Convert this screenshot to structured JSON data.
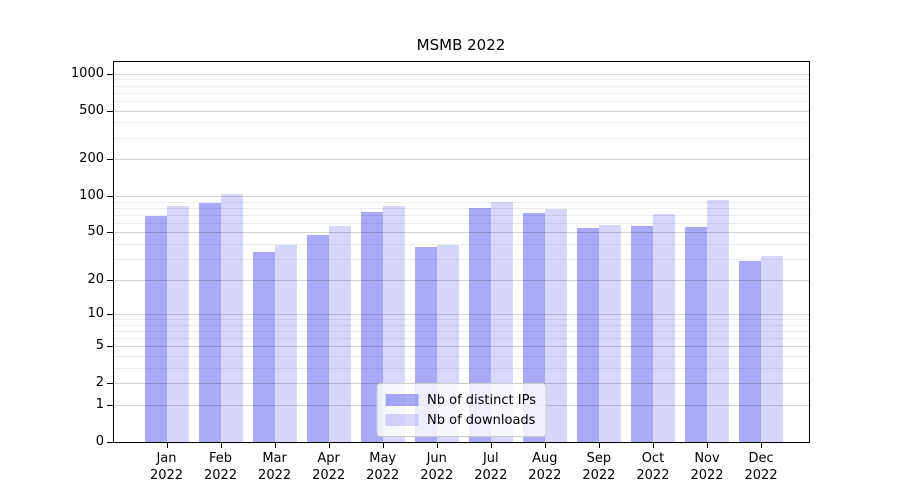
{
  "chart_data": {
    "type": "bar",
    "title": "MSMB 2022",
    "categories": [
      "Jan",
      "Feb",
      "Mar",
      "Apr",
      "May",
      "Jun",
      "Jul",
      "Aug",
      "Sep",
      "Oct",
      "Nov",
      "Dec"
    ],
    "year": "2022",
    "series": [
      {
        "name": "Nb of distinct IPs",
        "color": "rgba(68,68,238,0.46)",
        "values": [
          68,
          88,
          34,
          48,
          74,
          38,
          79,
          73,
          54,
          57,
          55,
          29
        ]
      },
      {
        "name": "Nb of downloads",
        "color": "rgba(68,68,238,0.21)",
        "values": [
          82,
          103,
          39,
          57,
          83,
          39,
          90,
          78,
          58,
          71,
          92,
          32
        ]
      }
    ],
    "yscale": "log1p",
    "ylim": [
      0,
      1245
    ],
    "y_ticks": [
      0,
      1,
      2,
      5,
      10,
      20,
      50,
      100,
      200,
      500,
      1000
    ],
    "y_tick_labels": [
      "0",
      "1",
      "2",
      "5",
      "10",
      "20",
      "50",
      "100",
      "200",
      "500",
      "1000"
    ],
    "minor_ticks": [
      3,
      4,
      6,
      7,
      8,
      9,
      30,
      40,
      60,
      70,
      80,
      90,
      300,
      400,
      600,
      700,
      800,
      900
    ],
    "grid": true,
    "legend_position": "lower-center",
    "legend_entries": [
      "Nb of distinct IPs",
      "Nb of downloads"
    ],
    "colors": {
      "background": "#ffffff",
      "spine": "#000000",
      "bar_base": "#4444ee"
    }
  }
}
